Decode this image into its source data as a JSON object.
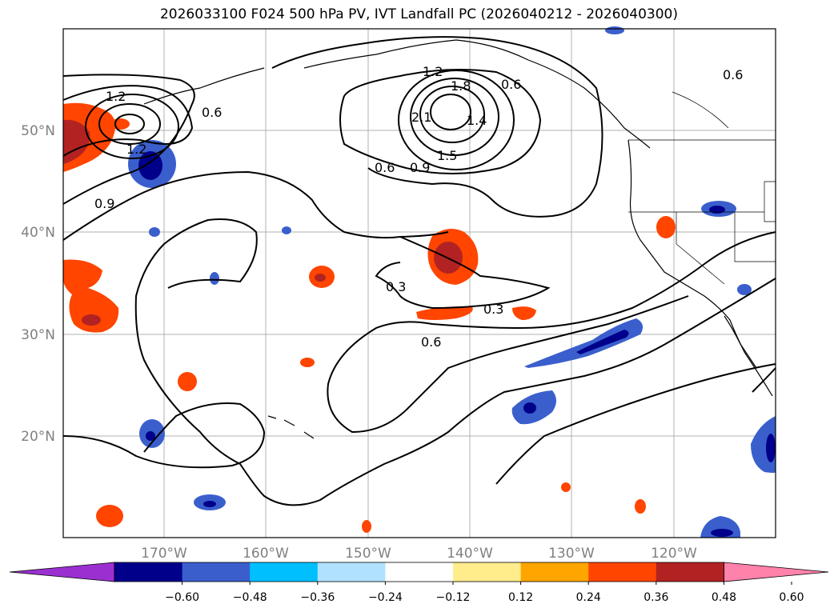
{
  "title": "2026033100 F024 500 hPa PV, IVT Landfall PC (2026040212 - 2026040300)",
  "map": {
    "lat_labels": [
      "50°N",
      "40°N",
      "30°N",
      "20°N"
    ],
    "lon_labels": [
      "170°W",
      "160°W",
      "150°W",
      "140°W",
      "130°W",
      "120°W"
    ],
    "tick_label_color": "#808080",
    "grid": true
  },
  "contour_labels": [
    "1.2",
    "0.6",
    "1.2",
    "0.9",
    "1.2",
    "1.8",
    "2.1",
    "1.4",
    "1.5",
    "0.9",
    "0.6",
    "0.6",
    "0.6",
    "0.3",
    "0.3",
    "0.6"
  ],
  "colorbar": {
    "tick_labels": [
      "−0.60",
      "−0.48",
      "−0.36",
      "−0.24",
      "−0.12",
      "0.12",
      "0.24",
      "0.36",
      "0.48",
      "0.60"
    ],
    "colors": [
      "#9b30d0",
      "#00008b",
      "#3a5fcd",
      "#00bfff",
      "#b0e2ff",
      "#ffffff",
      "#ffec8b",
      "#ffa500",
      "#ff4500",
      "#b22222",
      "#ff82ab"
    ]
  }
}
